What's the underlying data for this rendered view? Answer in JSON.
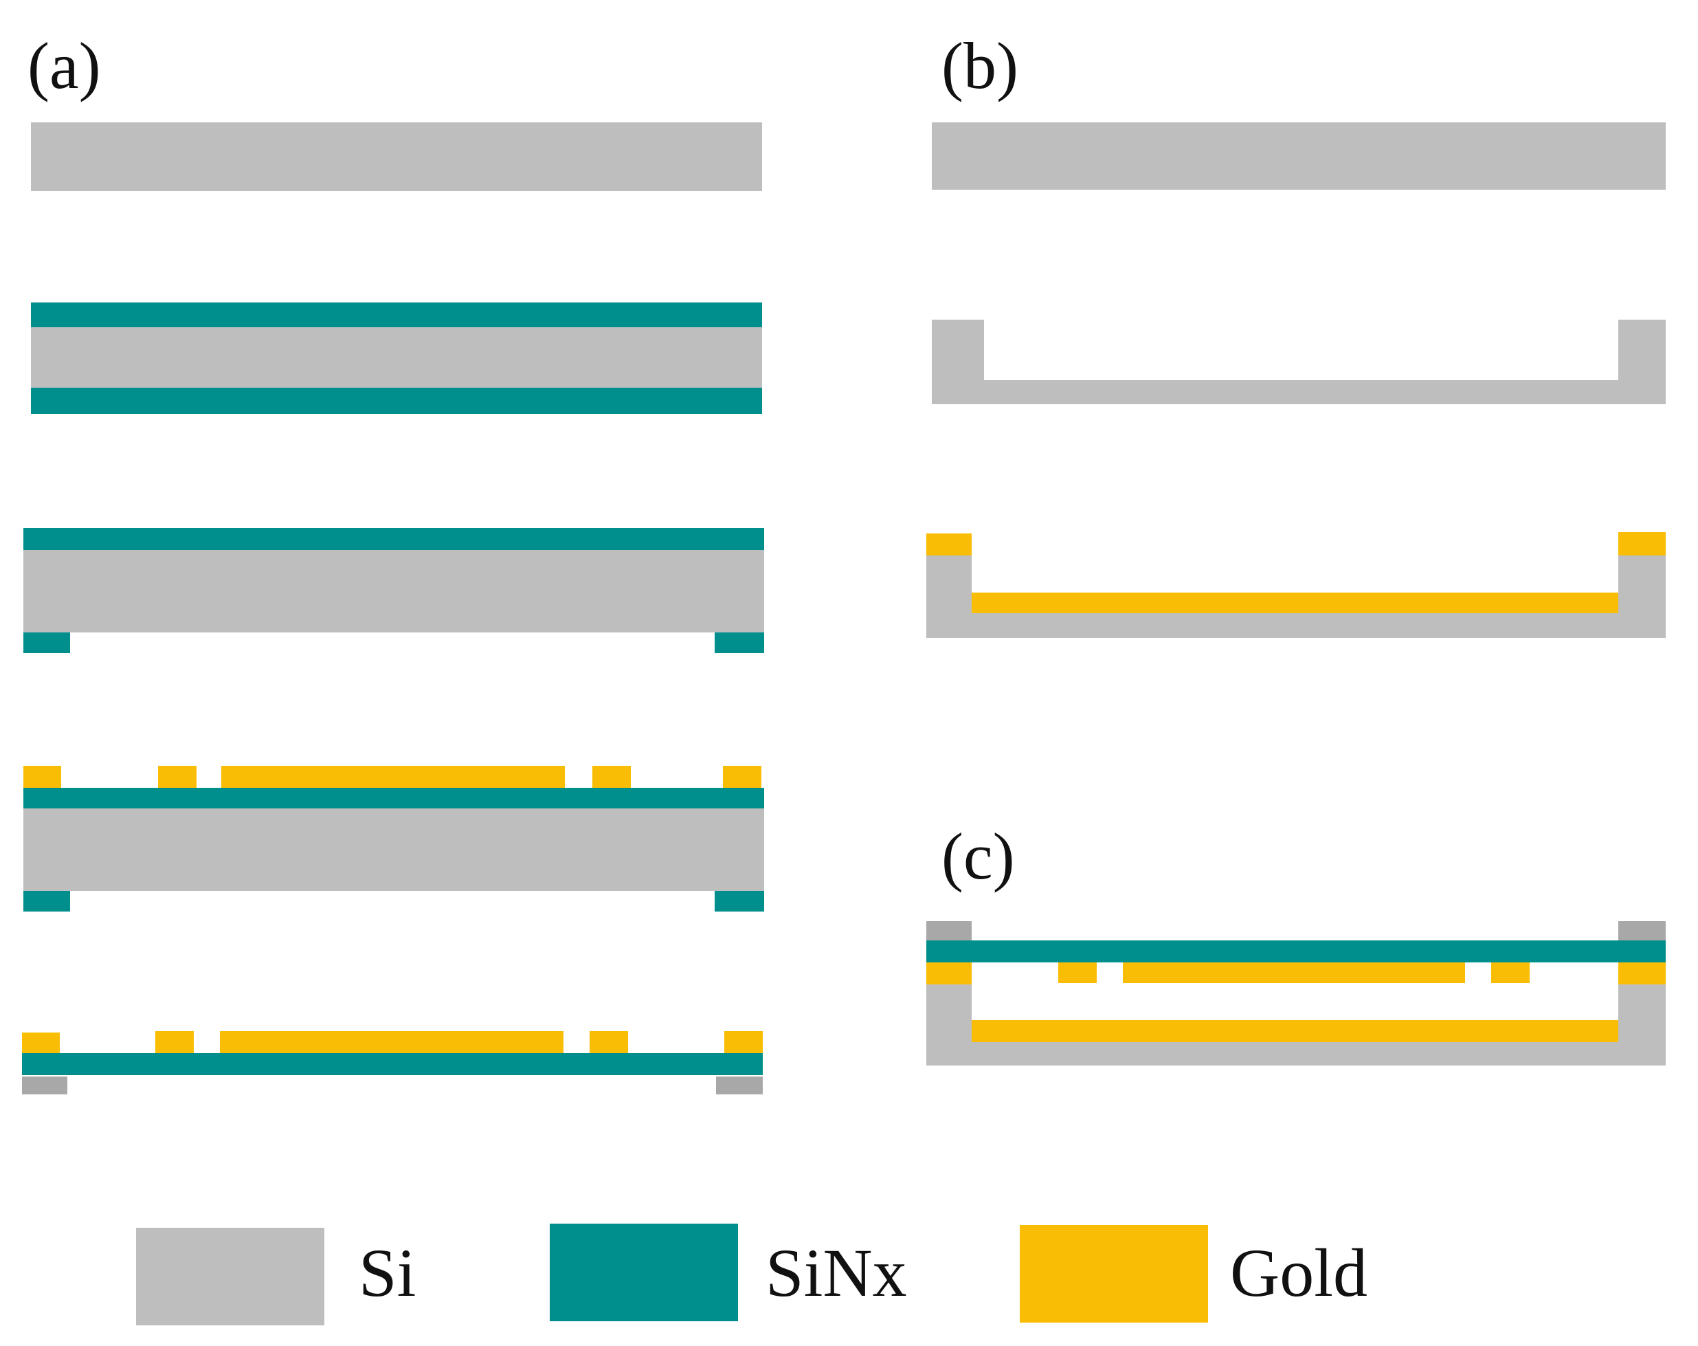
{
  "panels": {
    "a": {
      "label": "(a)"
    },
    "b": {
      "label": "(b)"
    },
    "c": {
      "label": "(c)"
    }
  },
  "materials": {
    "si": {
      "color": "#BEBEBE"
    },
    "si_dark": {
      "color": "#A8A8A8"
    },
    "sinx": {
      "color": "#008F8C"
    },
    "gold": {
      "color": "#F9BD05"
    }
  },
  "legend": {
    "si": "Si",
    "sinx": "SiNx",
    "gold": "Gold"
  }
}
